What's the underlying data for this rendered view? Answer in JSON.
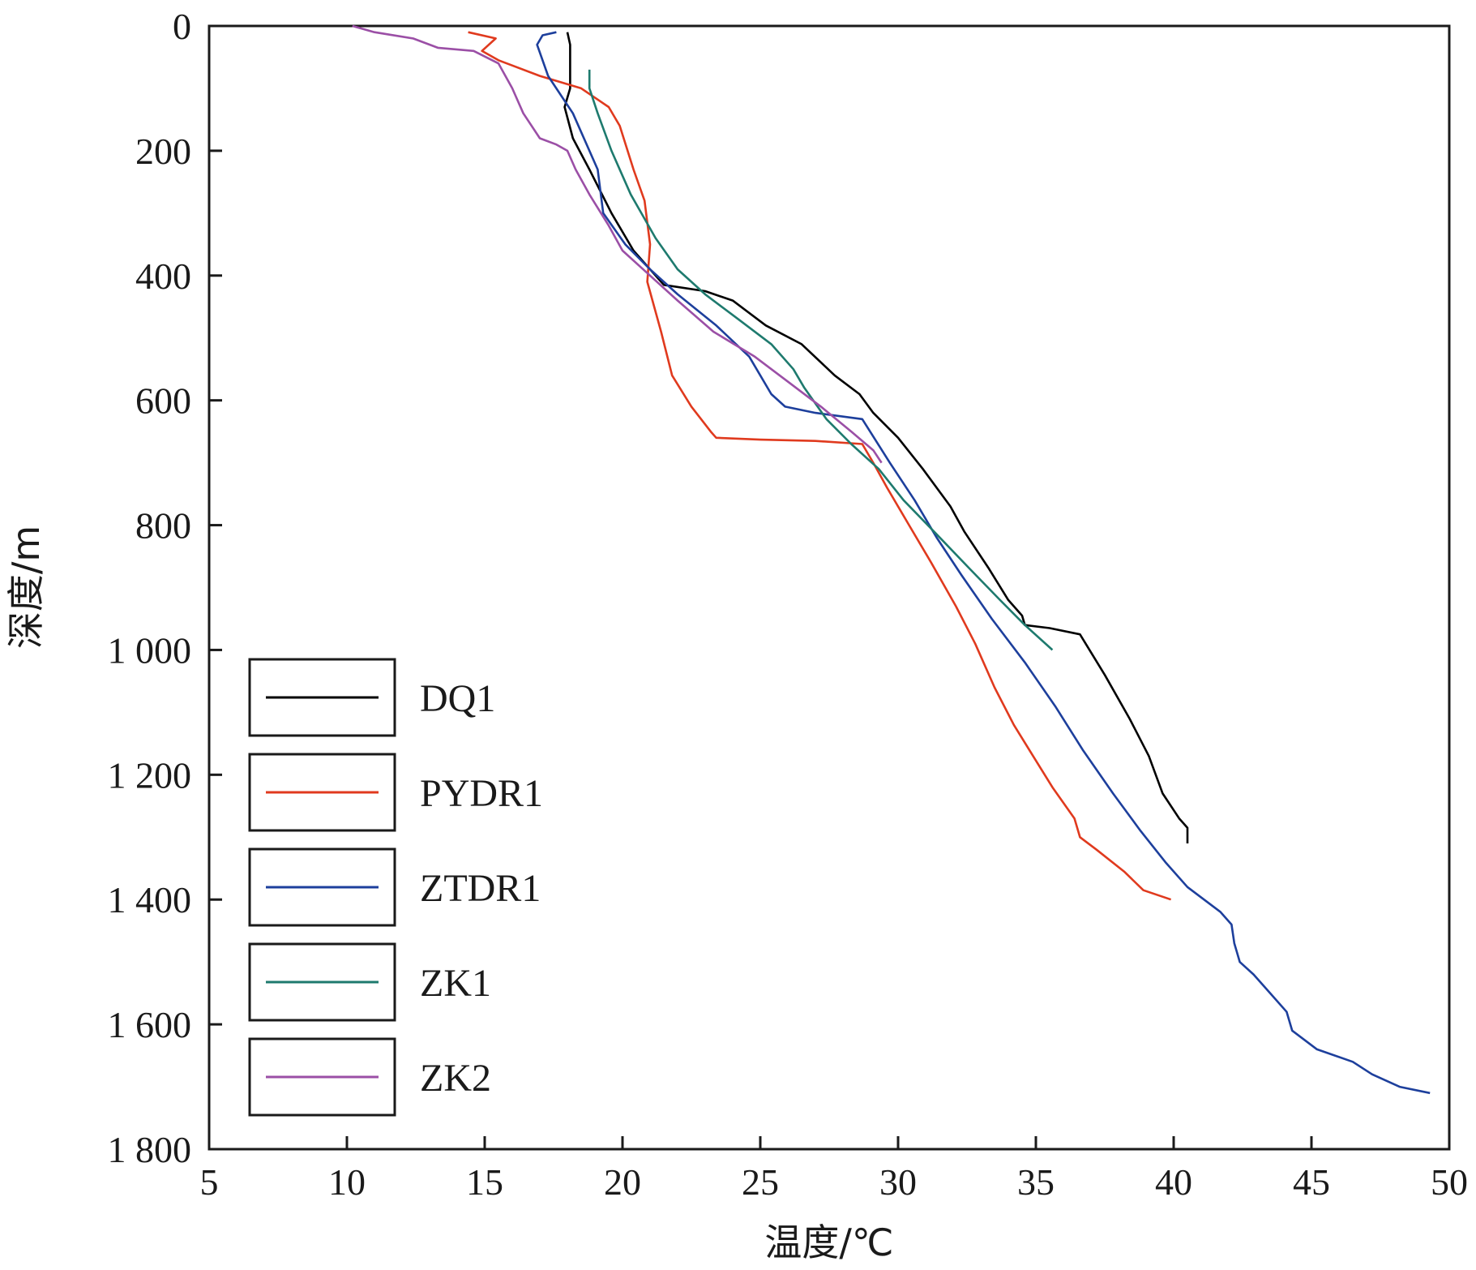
{
  "chart_data": {
    "type": "line",
    "xlabel": "温度/℃",
    "ylabel": "深度/m",
    "xlim": [
      5,
      50
    ],
    "ylim": [
      0,
      1800
    ],
    "y_inverted": true,
    "x_ticks": [
      "5",
      "10",
      "15",
      "20",
      "25",
      "30",
      "35",
      "40",
      "45",
      "50"
    ],
    "y_ticks": [
      "0",
      "200",
      "400",
      "600",
      "800",
      "1 000",
      "1 200",
      "1 400",
      "1 600",
      "1 800"
    ],
    "grid": false,
    "legend_position": "bottom-left",
    "series": [
      {
        "name": "DQ1",
        "color": "#000000",
        "points": [
          [
            18.0,
            10
          ],
          [
            18.1,
            30
          ],
          [
            18.1,
            100
          ],
          [
            17.9,
            130
          ],
          [
            18.2,
            180
          ],
          [
            18.8,
            230
          ],
          [
            19.6,
            300
          ],
          [
            20.4,
            360
          ],
          [
            21.5,
            415
          ],
          [
            23.0,
            425
          ],
          [
            24.0,
            440
          ],
          [
            25.2,
            480
          ],
          [
            26.5,
            510
          ],
          [
            27.7,
            560
          ],
          [
            28.6,
            590
          ],
          [
            29.1,
            620
          ],
          [
            30.0,
            660
          ],
          [
            30.9,
            710
          ],
          [
            31.9,
            770
          ],
          [
            32.4,
            810
          ],
          [
            33.3,
            870
          ],
          [
            34.0,
            920
          ],
          [
            34.5,
            945
          ],
          [
            34.6,
            960
          ],
          [
            35.5,
            965
          ],
          [
            36.6,
            975
          ],
          [
            37.5,
            1040
          ],
          [
            38.4,
            1110
          ],
          [
            39.1,
            1170
          ],
          [
            39.6,
            1230
          ],
          [
            40.2,
            1270
          ],
          [
            40.5,
            1285
          ],
          [
            40.5,
            1310
          ]
        ]
      },
      {
        "name": "PYDR1",
        "color": "#e03a1e",
        "points": [
          [
            14.4,
            10
          ],
          [
            15.4,
            20
          ],
          [
            14.9,
            40
          ],
          [
            15.5,
            55
          ],
          [
            17.0,
            80
          ],
          [
            18.5,
            100
          ],
          [
            19.5,
            130
          ],
          [
            19.9,
            160
          ],
          [
            20.4,
            230
          ],
          [
            20.8,
            280
          ],
          [
            21.0,
            350
          ],
          [
            20.9,
            410
          ],
          [
            21.4,
            490
          ],
          [
            21.8,
            560
          ],
          [
            22.5,
            610
          ],
          [
            23.2,
            650
          ],
          [
            23.4,
            660
          ],
          [
            25.0,
            663
          ],
          [
            27.0,
            665
          ],
          [
            28.7,
            670
          ],
          [
            29.1,
            700
          ],
          [
            29.6,
            740
          ],
          [
            30.4,
            800
          ],
          [
            31.2,
            860
          ],
          [
            32.1,
            930
          ],
          [
            32.8,
            990
          ],
          [
            33.5,
            1060
          ],
          [
            34.2,
            1120
          ],
          [
            34.9,
            1170
          ],
          [
            35.6,
            1220
          ],
          [
            36.4,
            1270
          ],
          [
            36.6,
            1300
          ],
          [
            37.2,
            1320
          ],
          [
            38.2,
            1355
          ],
          [
            38.9,
            1385
          ],
          [
            39.9,
            1400
          ]
        ]
      },
      {
        "name": "ZTDR1",
        "color": "#1d3f9c",
        "points": [
          [
            17.6,
            10
          ],
          [
            17.1,
            15
          ],
          [
            16.9,
            30
          ],
          [
            17.3,
            80
          ],
          [
            18.2,
            140
          ],
          [
            19.1,
            230
          ],
          [
            19.3,
            300
          ],
          [
            20.1,
            350
          ],
          [
            21.0,
            390
          ],
          [
            22.0,
            430
          ],
          [
            23.4,
            480
          ],
          [
            24.6,
            530
          ],
          [
            25.4,
            590
          ],
          [
            25.9,
            610
          ],
          [
            27.0,
            620
          ],
          [
            28.7,
            630
          ],
          [
            29.7,
            700
          ],
          [
            30.6,
            760
          ],
          [
            31.4,
            820
          ],
          [
            32.3,
            880
          ],
          [
            33.4,
            950
          ],
          [
            34.6,
            1020
          ],
          [
            35.7,
            1090
          ],
          [
            36.7,
            1160
          ],
          [
            37.8,
            1230
          ],
          [
            38.8,
            1290
          ],
          [
            39.7,
            1340
          ],
          [
            40.5,
            1380
          ],
          [
            41.7,
            1420
          ],
          [
            42.1,
            1440
          ],
          [
            42.2,
            1470
          ],
          [
            42.4,
            1500
          ],
          [
            42.9,
            1520
          ],
          [
            43.5,
            1550
          ],
          [
            44.1,
            1580
          ],
          [
            44.3,
            1610
          ],
          [
            45.2,
            1640
          ],
          [
            46.5,
            1660
          ],
          [
            47.2,
            1680
          ],
          [
            48.2,
            1700
          ],
          [
            49.3,
            1710
          ]
        ]
      },
      {
        "name": "ZK1",
        "color": "#1e7a6e",
        "points": [
          [
            18.8,
            70
          ],
          [
            18.8,
            100
          ],
          [
            19.1,
            140
          ],
          [
            19.6,
            200
          ],
          [
            20.3,
            270
          ],
          [
            21.2,
            340
          ],
          [
            22.0,
            390
          ],
          [
            23.0,
            430
          ],
          [
            24.2,
            470
          ],
          [
            25.4,
            510
          ],
          [
            26.2,
            550
          ],
          [
            26.6,
            580
          ],
          [
            27.4,
            630
          ],
          [
            28.3,
            670
          ],
          [
            29.3,
            710
          ],
          [
            30.2,
            760
          ],
          [
            31.3,
            810
          ],
          [
            32.6,
            870
          ],
          [
            33.7,
            920
          ],
          [
            34.6,
            960
          ],
          [
            35.6,
            1000
          ]
        ]
      },
      {
        "name": "ZK2",
        "color": "#9b4fa6",
        "points": [
          [
            10.2,
            0
          ],
          [
            11.0,
            10
          ],
          [
            12.4,
            20
          ],
          [
            13.3,
            35
          ],
          [
            14.6,
            40
          ],
          [
            15.5,
            60
          ],
          [
            16.0,
            100
          ],
          [
            16.4,
            140
          ],
          [
            17.0,
            180
          ],
          [
            17.6,
            190
          ],
          [
            18.0,
            200
          ],
          [
            18.3,
            230
          ],
          [
            18.8,
            270
          ],
          [
            19.5,
            320
          ],
          [
            20.0,
            360
          ],
          [
            21.0,
            400
          ],
          [
            22.0,
            440
          ],
          [
            23.3,
            490
          ],
          [
            24.8,
            530
          ],
          [
            26.0,
            570
          ],
          [
            27.2,
            610
          ],
          [
            28.3,
            650
          ],
          [
            29.1,
            680
          ],
          [
            29.4,
            700
          ]
        ]
      }
    ]
  }
}
